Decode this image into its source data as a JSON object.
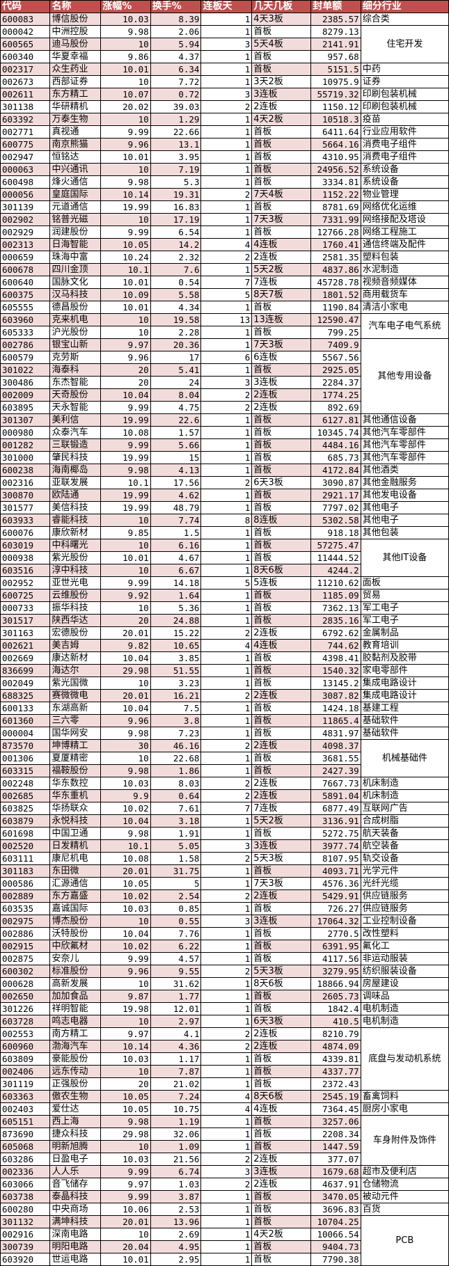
{
  "colors": {
    "header_bg": "#c0504d",
    "stripe": "#f2dcdb"
  },
  "headers": [
    "代码",
    "名称",
    "涨幅%",
    "换手%",
    "连板天",
    "几天几板",
    "封单额",
    "细分行业"
  ],
  "industry_groups": [
    {
      "label": "综合类",
      "rows": [
        [
          "600083",
          "博信股份",
          "10.03",
          "8.39",
          "1",
          "4天3板",
          "2385.57"
        ]
      ]
    },
    {
      "label": "住宅开发",
      "rows": [
        [
          "000042",
          "中洲控股",
          "9.98",
          "2.06",
          "1",
          "首板",
          "8279.13"
        ],
        [
          "600565",
          "迪马股份",
          "10",
          "5.94",
          "3",
          "5天4板",
          "2141.91"
        ],
        [
          "600340",
          "华夏幸福",
          "9.86",
          "4.37",
          "1",
          "首板",
          "957.68"
        ]
      ]
    },
    {
      "label": "中药",
      "rows": [
        [
          "002317",
          "众生药业",
          "10.01",
          "6.34",
          "1",
          "首板",
          "5151.5"
        ]
      ]
    },
    {
      "label": "证券",
      "rows": [
        [
          "002673",
          "西部证券",
          "10",
          "7.72",
          "1",
          "3天2板",
          "10975.9"
        ]
      ]
    },
    {
      "label": "印刷包装机械",
      "rows": [
        [
          "002611",
          "东方精工",
          "10.07",
          "0.72",
          "3",
          "3连板",
          "55719.32"
        ]
      ]
    },
    {
      "label": "印刷包装机械",
      "rows": [
        [
          "301138",
          "华研精机",
          "20.02",
          "39.03",
          "2",
          "2连板",
          "1150.12"
        ]
      ]
    },
    {
      "label": "疫苗",
      "rows": [
        [
          "603392",
          "万泰生物",
          "10",
          "1.29",
          "1",
          "4天2板",
          "10518.3"
        ]
      ]
    },
    {
      "label": "行业应用软件",
      "rows": [
        [
          "002771",
          "真视通",
          "9.99",
          "22.66",
          "1",
          "首板",
          "6411.64"
        ]
      ]
    },
    {
      "label": "消费电子组件",
      "rows": [
        [
          "600775",
          "南京熊猫",
          "9.96",
          "13.1",
          "1",
          "首板",
          "5664.16"
        ]
      ]
    },
    {
      "label": "消费电子组件",
      "rows": [
        [
          "002947",
          "恒铭达",
          "10.01",
          "3.95",
          "1",
          "首板",
          "4310.95"
        ]
      ]
    },
    {
      "label": "系统设备",
      "rows": [
        [
          "000063",
          "中兴通讯",
          "10",
          "7.19",
          "1",
          "首板",
          "24956.52"
        ]
      ]
    },
    {
      "label": "系统设备",
      "rows": [
        [
          "600498",
          "烽火通信",
          "9.98",
          "5.3",
          "1",
          "首板",
          "3334.81"
        ]
      ]
    },
    {
      "label": "物业管理",
      "rows": [
        [
          "000056",
          "皇庭国际",
          "10.14",
          "19.31",
          "2",
          "7天4板",
          "1152.22"
        ]
      ]
    },
    {
      "label": "网络优化运维",
      "rows": [
        [
          "301139",
          "元道通信",
          "19.99",
          "16.83",
          "1",
          "首板",
          "8781.69"
        ]
      ]
    },
    {
      "label": "网络接配及塔设",
      "rows": [
        [
          "002902",
          "铭普光磁",
          "10",
          "17.19",
          "1",
          "7天3板",
          "7331.99"
        ]
      ]
    },
    {
      "label": "网络工程施工",
      "rows": [
        [
          "002929",
          "润建股份",
          "9.99",
          "6.54",
          "1",
          "首板",
          "12766.28"
        ]
      ]
    },
    {
      "label": "通信终端及配件",
      "rows": [
        [
          "002313",
          "日海智能",
          "10.05",
          "14.2",
          "4",
          "4连板",
          "1760.41"
        ]
      ]
    },
    {
      "label": "塑料包装",
      "rows": [
        [
          "000659",
          "珠海中富",
          "10.24",
          "2.32",
          "2",
          "2连板",
          "2581.35"
        ]
      ]
    },
    {
      "label": "水泥制造",
      "rows": [
        [
          "600678",
          "四川金顶",
          "10.1",
          "7.6",
          "1",
          "5天2板",
          "4837.86"
        ]
      ]
    },
    {
      "label": "视频音频媒体",
      "rows": [
        [
          "600640",
          "国脉文化",
          "10.01",
          "0.54",
          "7",
          "7连板",
          "45728.78"
        ]
      ]
    },
    {
      "label": "商用载货车",
      "rows": [
        [
          "600375",
          "汉马科技",
          "10.09",
          "5.58",
          "5",
          "8天7板",
          "1801.52"
        ]
      ]
    },
    {
      "label": "清洁小家电",
      "rows": [
        [
          "605555",
          "德昌股份",
          "10.01",
          "4.34",
          "1",
          "首板",
          "1190.84"
        ]
      ]
    },
    {
      "label": "汽车电子电气系统",
      "rows": [
        [
          "603960",
          "克来机电",
          "10",
          "19.58",
          "13",
          "13连板",
          "12590.47"
        ],
        [
          "605333",
          "沪光股份",
          "10",
          "2.28",
          "1",
          "首板",
          "799.25"
        ]
      ]
    },
    {
      "label": "其他专用设备",
      "rows": [
        [
          "002786",
          "银宝山新",
          "9.97",
          "20.36",
          "1",
          "7天3板",
          "7409.9"
        ],
        [
          "600579",
          "克劳斯",
          "9.96",
          "17",
          "6",
          "6连板",
          "5567.56"
        ],
        [
          "301022",
          "海泰科",
          "20",
          "5.41",
          "1",
          "首板",
          "2925.05"
        ],
        [
          "300486",
          "东杰智能",
          "20",
          "24",
          "3",
          "3连板",
          "2284.37"
        ],
        [
          "002009",
          "天奇股份",
          "10.04",
          "8.04",
          "2",
          "2连板",
          "1774.25"
        ],
        [
          "603895",
          "天永智能",
          "9.99",
          "4.75",
          "2",
          "2连板",
          "892.69"
        ]
      ]
    },
    {
      "label": "其他通信设备",
      "rows": [
        [
          "301307",
          "美利信",
          "19.99",
          "22.6",
          "1",
          "首板",
          "6127.81"
        ]
      ]
    },
    {
      "label": "其他汽车零部件",
      "rows": [
        [
          "000980",
          "众泰汽车",
          "10.08",
          "1.57",
          "1",
          "首板",
          "10345.74"
        ]
      ]
    },
    {
      "label": "其他汽车零部件",
      "rows": [
        [
          "001282",
          "三联锻造",
          "9.99",
          "5.66",
          "1",
          "首板",
          "4484.16"
        ]
      ]
    },
    {
      "label": "其他汽车零部件",
      "rows": [
        [
          "301000",
          "肇民科技",
          "19.99",
          "15",
          "1",
          "首板",
          "685.73"
        ]
      ]
    },
    {
      "label": "其他酒类",
      "rows": [
        [
          "600238",
          "海南椰岛",
          "9.98",
          "4.13",
          "1",
          "首板",
          "4172.84"
        ]
      ]
    },
    {
      "label": "其他金融服务",
      "rows": [
        [
          "002316",
          "亚联发展",
          "10.1",
          "17.56",
          "2",
          "6天3板",
          "3090.87"
        ]
      ]
    },
    {
      "label": "其他发电设备",
      "rows": [
        [
          "300870",
          "欧陆通",
          "19.99",
          "4.62",
          "1",
          "首板",
          "2921.17"
        ]
      ]
    },
    {
      "label": "其他电子",
      "rows": [
        [
          "301577",
          "美信科技",
          "19.99",
          "48.79",
          "1",
          "首板",
          "7797.02"
        ]
      ]
    },
    {
      "label": "其他电子",
      "rows": [
        [
          "603933",
          "睿能科技",
          "10",
          "7.74",
          "8",
          "8连板",
          "5302.58"
        ]
      ]
    },
    {
      "label": "其他包装",
      "rows": [
        [
          "600076",
          "康欣新材",
          "9.85",
          "1.5",
          "1",
          "首板",
          "918.18"
        ]
      ]
    },
    {
      "label": "其他IT设备",
      "rows": [
        [
          "603019",
          "中科曙光",
          "10",
          "6.16",
          "1",
          "首板",
          "57275.47"
        ],
        [
          "000938",
          "紫光股份",
          "10.01",
          "4.67",
          "1",
          "首板",
          "11444.52"
        ],
        [
          "603516",
          "淳中科技",
          "10",
          "6.67",
          "1",
          "8天6板",
          "4244.2"
        ]
      ]
    },
    {
      "label": "面板",
      "rows": [
        [
          "002952",
          "亚世光电",
          "9.99",
          "14.18",
          "5",
          "5连板",
          "11210.62"
        ]
      ]
    },
    {
      "label": "贸易",
      "rows": [
        [
          "600725",
          "云维股份",
          "9.92",
          "1.64",
          "1",
          "首板",
          "1185.09"
        ]
      ]
    },
    {
      "label": "军工电子",
      "rows": [
        [
          "000733",
          "振华科技",
          "10",
          "5.36",
          "1",
          "首板",
          "7362.13"
        ]
      ]
    },
    {
      "label": "军工电子",
      "rows": [
        [
          "301517",
          "陕西华达",
          "20",
          "24.88",
          "1",
          "首板",
          "2835.16"
        ]
      ]
    },
    {
      "label": "金属制品",
      "rows": [
        [
          "301163",
          "宏德股份",
          "20.01",
          "15.22",
          "2",
          "2连板",
          "6792.62"
        ]
      ]
    },
    {
      "label": "教育培训",
      "rows": [
        [
          "002621",
          "美吉姆",
          "9.82",
          "10.65",
          "4",
          "4连板",
          "744.62"
        ]
      ]
    },
    {
      "label": "胶黏剂及胶带",
      "rows": [
        [
          "002669",
          "康达新材",
          "10.04",
          "3.85",
          "1",
          "首板",
          "4398.41"
        ]
      ]
    },
    {
      "label": "家电零部件",
      "rows": [
        [
          "836699",
          "海达尔",
          "29.98",
          "51.55",
          "1",
          "首板",
          "1540.32"
        ]
      ]
    },
    {
      "label": "集成电路设计",
      "rows": [
        [
          "002049",
          "紫光国微",
          "10",
          "3.23",
          "1",
          "首板",
          "13145.2"
        ]
      ]
    },
    {
      "label": "集成电路设计",
      "rows": [
        [
          "688325",
          "赛微微电",
          "20.01",
          "16.21",
          "2",
          "2连板",
          "3087.82"
        ]
      ]
    },
    {
      "label": "基建工程",
      "rows": [
        [
          "600133",
          "东湖高新",
          "10.04",
          "7.5",
          "1",
          "首板",
          "1424.18"
        ]
      ]
    },
    {
      "label": "基础软件",
      "rows": [
        [
          "601360",
          "三六零",
          "9.96",
          "3.8",
          "1",
          "首板",
          "11865.4"
        ]
      ]
    },
    {
      "label": "基础软件",
      "rows": [
        [
          "000004",
          "国华网安",
          "9.98",
          "7.23",
          "1",
          "首板",
          "4831.97"
        ]
      ]
    },
    {
      "label": "机械基础件",
      "rows": [
        [
          "873570",
          "坤博精工",
          "30",
          "46.16",
          "2",
          "2连板",
          "4098.37"
        ],
        [
          "001306",
          "夏厦精密",
          "10",
          "22.68",
          "1",
          "首板",
          "3681.55"
        ],
        [
          "603315",
          "福鞍股份",
          "9.98",
          "1.86",
          "1",
          "首板",
          "2427.39"
        ]
      ]
    },
    {
      "label": "机床制造",
      "rows": [
        [
          "002248",
          "华东数控",
          "10.03",
          "8.03",
          "2",
          "2连板",
          "7667.73"
        ]
      ]
    },
    {
      "label": "机床制造",
      "rows": [
        [
          "002685",
          "华东重机",
          "9.9",
          "0.64",
          "2",
          "2连板",
          "5891.04"
        ]
      ]
    },
    {
      "label": "互联网广告",
      "rows": [
        [
          "603825",
          "华扬联众",
          "10.02",
          "7.61",
          "7",
          "7连板",
          "6877.49"
        ]
      ]
    },
    {
      "label": "合成树脂",
      "rows": [
        [
          "603879",
          "永悦科技",
          "10.04",
          "3.18",
          "1",
          "5天2板",
          "3136.91"
        ]
      ]
    },
    {
      "label": "航天装备",
      "rows": [
        [
          "601698",
          "中国卫通",
          "9.98",
          "1.91",
          "1",
          "首板",
          "5272.75"
        ]
      ]
    },
    {
      "label": "航空装备",
      "rows": [
        [
          "002520",
          "日发精机",
          "10.1",
          "5.05",
          "3",
          "3连板",
          "3977.74"
        ]
      ]
    },
    {
      "label": "轨交设备",
      "rows": [
        [
          "603111",
          "康尼机电",
          "10.08",
          "1.58",
          "2",
          "5天3板",
          "8107.95"
        ]
      ]
    },
    {
      "label": "光学元件",
      "rows": [
        [
          "301183",
          "东田微",
          "20.01",
          "31.75",
          "1",
          "首板",
          "4093.71"
        ]
      ]
    },
    {
      "label": "光纤光缆",
      "rows": [
        [
          "000586",
          "汇源通信",
          "10.05",
          "5",
          "1",
          "7天3板",
          "4576.36"
        ]
      ]
    },
    {
      "label": "供应链服务",
      "rows": [
        [
          "002889",
          "东方嘉盛",
          "10.02",
          "2.54",
          "2",
          "2连板",
          "5429.91"
        ]
      ]
    },
    {
      "label": "供应链服务",
      "rows": [
        [
          "603535",
          "嘉诚国际",
          "10.03",
          "0.85",
          "1",
          "首板",
          "726.27"
        ]
      ]
    },
    {
      "label": "工业控制设备",
      "rows": [
        [
          "002975",
          "博杰股份",
          "10",
          "0.55",
          "3",
          "3连板",
          "17064.32"
        ]
      ]
    },
    {
      "label": "改性塑料",
      "rows": [
        [
          "002886",
          "沃特股份",
          "10.04",
          "7.76",
          "1",
          "首板",
          "2770.5"
        ]
      ]
    },
    {
      "label": "氟化工",
      "rows": [
        [
          "002915",
          "中欣氟材",
          "10.02",
          "6.22",
          "1",
          "首板",
          "6391.95"
        ]
      ]
    },
    {
      "label": "非运动服装",
      "rows": [
        [
          "002875",
          "安奈儿",
          "9.99",
          "4.57",
          "1",
          "首板",
          "4117.56"
        ]
      ]
    },
    {
      "label": "纺织服装设备",
      "rows": [
        [
          "600302",
          "标准股份",
          "9.96",
          "9.55",
          "2",
          "5天3板",
          "3279.95"
        ]
      ]
    },
    {
      "label": "房屋建设",
      "rows": [
        [
          "000628",
          "高新发展",
          "10",
          "31.62",
          "1",
          "8天6板",
          "18866.94"
        ]
      ]
    },
    {
      "label": "调味品",
      "rows": [
        [
          "002650",
          "加加食品",
          "9.87",
          "1.77",
          "1",
          "首板",
          "2605.73"
        ]
      ]
    },
    {
      "label": "电机制造",
      "rows": [
        [
          "301226",
          "祥明智能",
          "19.98",
          "12.01",
          "1",
          "首板",
          "1842.4"
        ]
      ]
    },
    {
      "label": "电机制造",
      "rows": [
        [
          "603728",
          "鸣志电器",
          "10",
          "2.97",
          "1",
          "6天3板",
          "410.5"
        ]
      ]
    },
    {
      "label": "底盘与发动机系统",
      "rows": [
        [
          "002553",
          "南方精工",
          "9.97",
          "4.1",
          "2",
          "2连板",
          "8210.79"
        ],
        [
          "600960",
          "渤海汽车",
          "10.14",
          "4.36",
          "2",
          "2连板",
          "4874.09"
        ],
        [
          "603809",
          "豪能股份",
          "10.03",
          "1.17",
          "1",
          "首板",
          "4339.81"
        ],
        [
          "002406",
          "远东传动",
          "10",
          "7.87",
          "1",
          "首板",
          "4337.77"
        ],
        [
          "301119",
          "正强股份",
          "20",
          "21.02",
          "1",
          "首板",
          "2372.43"
        ]
      ]
    },
    {
      "label": "畜禽饲料",
      "rows": [
        [
          "603363",
          "傲农生物",
          "10.05",
          "7.24",
          "4",
          "8天6板",
          "2545.19"
        ]
      ]
    },
    {
      "label": "厨房小家电",
      "rows": [
        [
          "002403",
          "爱仕达",
          "10.05",
          "10.75",
          "4",
          "4连板",
          "7364.45"
        ]
      ]
    },
    {
      "label": "车身附件及饰件",
      "rows": [
        [
          "605151",
          "西上海",
          "9.98",
          "1.19",
          "1",
          "首板",
          "3257.06"
        ],
        [
          "873690",
          "捷众科技",
          "29.98",
          "32.06",
          "1",
          "首板",
          "2208.34"
        ],
        [
          "605068",
          "明新旭腾",
          "10",
          "1.09",
          "1",
          "首板",
          "1447.59"
        ],
        [
          "603286",
          "日盈电子",
          "10.03",
          "21.56",
          "2",
          "2连板",
          "377.07"
        ]
      ]
    },
    {
      "label": "超市及便利店",
      "rows": [
        [
          "002336",
          "人人乐",
          "9.99",
          "6.74",
          "3",
          "3连板",
          "1679.68"
        ]
      ]
    },
    {
      "label": "仓储物流",
      "rows": [
        [
          "603066",
          "音飞储存",
          "9.97",
          "1.03",
          "2",
          "2连板",
          "4637.91"
        ]
      ]
    },
    {
      "label": "被动元件",
      "rows": [
        [
          "603738",
          "泰晶科技",
          "9.99",
          "3.87",
          "1",
          "首板",
          "3470.05"
        ]
      ]
    },
    {
      "label": "百货",
      "rows": [
        [
          "600280",
          "中央商场",
          "10.06",
          "2.53",
          "1",
          "首板",
          "3696.83"
        ]
      ]
    },
    {
      "label": "PCB",
      "rows": [
        [
          "301132",
          "满坤科技",
          "20.01",
          "13.96",
          "1",
          "首板",
          "10704.25"
        ],
        [
          "002916",
          "深南电路",
          "10",
          "2.69",
          "1",
          "4天2板",
          "10066.54"
        ],
        [
          "300739",
          "明阳电路",
          "20.04",
          "4.95",
          "1",
          "首板",
          "9404.73"
        ],
        [
          "603920",
          "世运电路",
          "10.01",
          "2.95",
          "1",
          "首板",
          "7790.38"
        ]
      ]
    }
  ]
}
